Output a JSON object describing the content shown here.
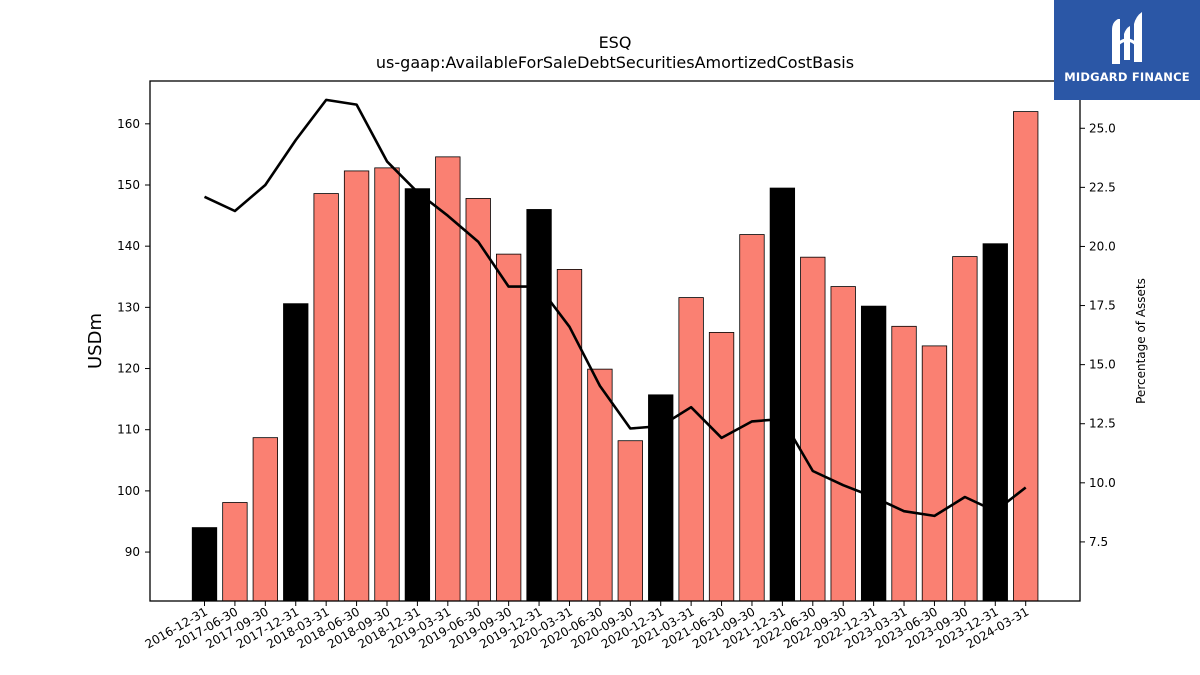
{
  "chart_data": {
    "type": "bar",
    "title": "ESQ",
    "subtitle": "us-gaap:AvailableForSaleDebtSecuritiesAmortizedCostBasis",
    "ylabel": "USDm",
    "y2label": "Percentage of Assets",
    "ylim": [
      82,
      167
    ],
    "y2lim": [
      5.0,
      27.0
    ],
    "yticks": [
      90,
      100,
      110,
      120,
      130,
      140,
      150,
      160
    ],
    "y2ticks": [
      7.5,
      10.0,
      12.5,
      15.0,
      17.5,
      20.0,
      22.5,
      25.0
    ],
    "categories": [
      "2016-12-31",
      "2017-06-30",
      "2017-09-30",
      "2017-12-31",
      "2018-03-31",
      "2018-06-30",
      "2018-09-30",
      "2018-12-31",
      "2019-03-31",
      "2019-06-30",
      "2019-09-30",
      "2019-12-31",
      "2020-03-31",
      "2020-06-30",
      "2020-09-30",
      "2020-12-31",
      "2021-03-31",
      "2021-06-30",
      "2021-09-30",
      "2021-12-31",
      "2022-06-30",
      "2022-09-30",
      "2022-12-31",
      "2023-03-31",
      "2023-06-30",
      "2023-09-30",
      "2023-12-31",
      "2024-03-31"
    ],
    "series": [
      {
        "type": "bar",
        "values": [
          94.0,
          98.1,
          108.7,
          130.6,
          148.6,
          152.3,
          152.8,
          149.4,
          154.6,
          147.8,
          138.7,
          146.0,
          136.2,
          119.9,
          108.2,
          115.7,
          131.6,
          125.9,
          141.9,
          149.5,
          138.2,
          133.4,
          130.2,
          126.9,
          123.7,
          138.3,
          140.4,
          162.0
        ],
        "colors": [
          "#000000",
          "#fa8072",
          "#fa8072",
          "#000000",
          "#fa8072",
          "#fa8072",
          "#fa8072",
          "#000000",
          "#fa8072",
          "#fa8072",
          "#fa8072",
          "#000000",
          "#fa8072",
          "#fa8072",
          "#fa8072",
          "#000000",
          "#fa8072",
          "#fa8072",
          "#fa8072",
          "#000000",
          "#fa8072",
          "#fa8072",
          "#000000",
          "#fa8072",
          "#fa8072",
          "#fa8072",
          "#000000",
          "#fa8072"
        ]
      },
      {
        "type": "line",
        "axis": "right",
        "color": "#000000",
        "values": [
          22.1,
          21.5,
          22.6,
          24.5,
          26.2,
          26.0,
          23.6,
          22.3,
          21.3,
          20.2,
          18.3,
          18.3,
          16.6,
          14.1,
          12.3,
          12.4,
          13.2,
          11.9,
          12.6,
          12.7,
          10.5,
          9.9,
          9.4,
          8.8,
          8.6,
          9.4,
          8.8,
          9.8
        ]
      }
    ],
    "grid": false,
    "legend": "none"
  },
  "logo": {
    "brand": "MIDGARD FINANCE"
  }
}
